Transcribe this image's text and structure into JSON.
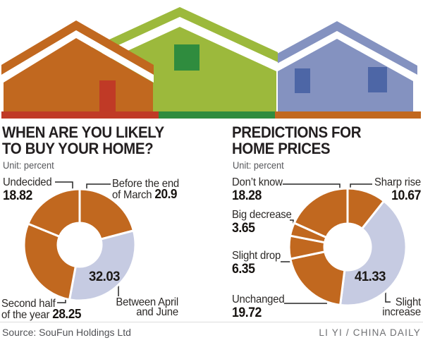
{
  "page": {
    "source": "Source: SouFun Holdings Ltd",
    "credit": "LI YI / CHINA DAILY"
  },
  "colors": {
    "orange": "#c1681f",
    "red": "#c03a26",
    "green": "#9cb93c",
    "dark_green": "#2f8c3e",
    "blue": "#8492c0",
    "dark_blue": "#4d66a6",
    "lavender": "#c6cbe2"
  },
  "chart_data": [
    {
      "type": "donut",
      "title": "WHEN ARE YOU LIKELY TO BUY YOUR HOME?",
      "title_lines": [
        "WHEN ARE YOU LIKELY",
        "TO BUY YOUR HOME?"
      ],
      "unit_label": "Unit: percent",
      "start_angle_deg": 0,
      "direction": "clockwise",
      "slices": [
        {
          "label": "Before the end of March",
          "label_lines": [
            "Before the end",
            "of March"
          ],
          "value": 20.9,
          "color": "#c1681f"
        },
        {
          "label": "Between April and June",
          "label_lines": [
            "Between April",
            "and June"
          ],
          "value": 32.03,
          "color": "#c6cbe2"
        },
        {
          "label": "Second half of the year",
          "label_lines": [
            "Second half",
            "of the year"
          ],
          "value": 28.25,
          "color": "#c1681f"
        },
        {
          "label": "Undecided",
          "label_lines": [
            "Undecided"
          ],
          "value": 18.82,
          "color": "#c1681f"
        }
      ]
    },
    {
      "type": "donut",
      "title": "PREDICTIONS FOR HOME PRICES",
      "title_lines": [
        "PREDICTIONS FOR",
        "HOME PRICES"
      ],
      "unit_label": "Unit: percent",
      "start_angle_deg": 0,
      "direction": "clockwise",
      "slices": [
        {
          "label": "Sharp rise",
          "label_lines": [
            "Sharp rise"
          ],
          "value": 10.67,
          "color": "#c1681f"
        },
        {
          "label": "Slight increase",
          "label_lines": [
            "Slight",
            "increase"
          ],
          "value": 41.33,
          "color": "#c6cbe2"
        },
        {
          "label": "Unchanged",
          "label_lines": [
            "Unchanged"
          ],
          "value": 19.72,
          "color": "#c1681f"
        },
        {
          "label": "Slight drop",
          "label_lines": [
            "Slight drop"
          ],
          "value": 6.35,
          "color": "#c1681f"
        },
        {
          "label": "Big decrease",
          "label_lines": [
            "Big decrease"
          ],
          "value": 3.65,
          "color": "#c1681f"
        },
        {
          "label": "Don’t know",
          "label_lines": [
            "Don’t know"
          ],
          "value": 18.28,
          "color": "#c1681f"
        }
      ]
    }
  ]
}
